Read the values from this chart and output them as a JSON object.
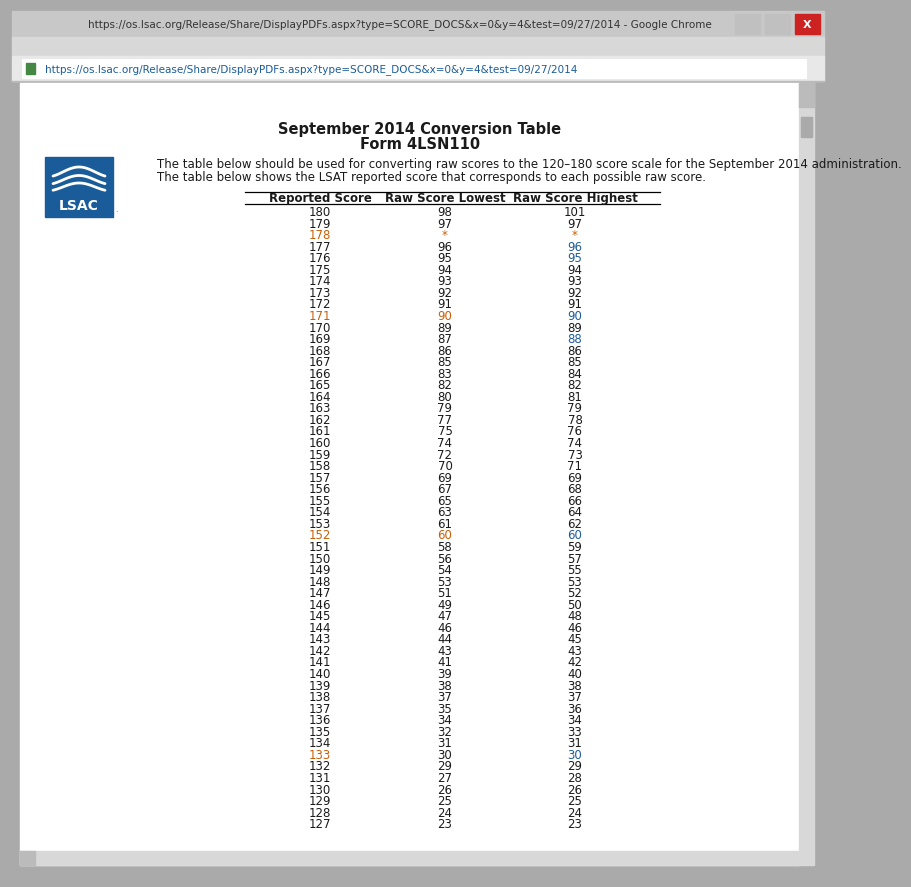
{
  "title1": "September 2014 Conversion Table",
  "title2": "Form 4LSN110",
  "desc1": "The table below should be used for converting raw scores to the 120–180 score scale for the September 2014 administration.",
  "desc2": "The table below shows the LSAT reported score that corresponds to each possible raw score.",
  "col_headers": [
    "Reported Score",
    "Raw Score Lowest",
    "Raw Score Highest"
  ],
  "table_data": [
    [
      180,
      "98",
      "101"
    ],
    [
      179,
      "97",
      "97"
    ],
    [
      178,
      "*",
      "*"
    ],
    [
      177,
      "96",
      "96"
    ],
    [
      176,
      "95",
      "95"
    ],
    [
      175,
      "94",
      "94"
    ],
    [
      174,
      "93",
      "93"
    ],
    [
      173,
      "92",
      "92"
    ],
    [
      172,
      "91",
      "91"
    ],
    [
      171,
      "90",
      "90"
    ],
    [
      170,
      "89",
      "89"
    ],
    [
      169,
      "87",
      "88"
    ],
    [
      168,
      "86",
      "86"
    ],
    [
      167,
      "85",
      "85"
    ],
    [
      166,
      "83",
      "84"
    ],
    [
      165,
      "82",
      "82"
    ],
    [
      164,
      "80",
      "81"
    ],
    [
      163,
      "79",
      "79"
    ],
    [
      162,
      "77",
      "78"
    ],
    [
      161,
      "75",
      "76"
    ],
    [
      160,
      "74",
      "74"
    ],
    [
      159,
      "72",
      "73"
    ],
    [
      158,
      "70",
      "71"
    ],
    [
      157,
      "69",
      "69"
    ],
    [
      156,
      "67",
      "68"
    ],
    [
      155,
      "65",
      "66"
    ],
    [
      154,
      "63",
      "64"
    ],
    [
      153,
      "61",
      "62"
    ],
    [
      152,
      "60",
      "60"
    ],
    [
      151,
      "58",
      "59"
    ],
    [
      150,
      "56",
      "57"
    ],
    [
      149,
      "54",
      "55"
    ],
    [
      148,
      "53",
      "53"
    ],
    [
      147,
      "51",
      "52"
    ],
    [
      146,
      "49",
      "50"
    ],
    [
      145,
      "47",
      "48"
    ],
    [
      144,
      "46",
      "46"
    ],
    [
      143,
      "44",
      "45"
    ],
    [
      142,
      "43",
      "43"
    ],
    [
      141,
      "41",
      "42"
    ],
    [
      140,
      "39",
      "40"
    ],
    [
      139,
      "38",
      "38"
    ],
    [
      138,
      "37",
      "37"
    ],
    [
      137,
      "35",
      "36"
    ],
    [
      136,
      "34",
      "34"
    ],
    [
      135,
      "32",
      "33"
    ],
    [
      134,
      "31",
      "31"
    ],
    [
      133,
      "30",
      "30"
    ],
    [
      132,
      "29",
      "29"
    ],
    [
      131,
      "27",
      "28"
    ],
    [
      130,
      "26",
      "26"
    ],
    [
      129,
      "25",
      "25"
    ],
    [
      128,
      "24",
      "24"
    ],
    [
      127,
      "23",
      "23"
    ]
  ],
  "orange_reported": [
    178,
    171,
    152,
    133
  ],
  "orange_raw_lowest": [
    "*",
    "90",
    "60"
  ],
  "blue_raw_highest": [
    "96",
    "95",
    "90",
    "88",
    "60",
    "30"
  ],
  "orange_raw_highest": [
    "*"
  ],
  "color_orange": "#C8600A",
  "color_blue": "#1F5C99",
  "color_black": "#1A1A1A",
  "chrome_title_bg": "#C0C0C0",
  "chrome_url_bg": "#F0F0F0",
  "chrome_url_bar": "#FFFFFF",
  "content_bg": "#FFFFFF",
  "scrollbar_bg": "#D0D0D0",
  "scrollbar_thumb": "#A0A0A0",
  "logo_blue": "#1A5C9A",
  "window_border": "#999999",
  "title_bar_text": "#333333",
  "url_text": "#1A5C9A",
  "font_size_title": 10.5,
  "font_size_table": 8.5,
  "font_size_desc": 8.5,
  "font_size_chrome": 7.5
}
